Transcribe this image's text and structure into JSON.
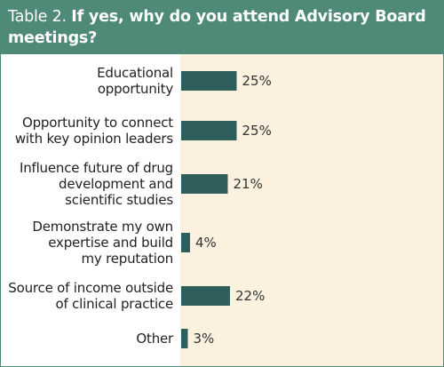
{
  "header": {
    "prefix": "Table 2.",
    "question": "If yes, why do you attend Advisory Board meetings?"
  },
  "colors": {
    "header_bg": "#4f8a79",
    "plot_bg": "#fcf1de",
    "bar": "#2e5f5c"
  },
  "chart_data": {
    "type": "bar",
    "orientation": "horizontal",
    "title": "If yes, why do you attend Advisory Board meetings?",
    "categories": [
      "Educational opportunity",
      "Opportunity to connect with key opinion leaders",
      "Influence future of drug development and scientific studies",
      "Demonstrate my own expertise and build my reputation",
      "Source of income outside of clinical practice",
      "Other"
    ],
    "category_lines": [
      [
        "Educational",
        "opportunity"
      ],
      [
        "Opportunity to connect",
        "with key opinion leaders"
      ],
      [
        "Influence future of drug",
        "development and",
        "scientific studies"
      ],
      [
        "Demonstrate my own",
        "expertise and build",
        "my reputation"
      ],
      [
        "Source of income outside",
        "of clinical practice"
      ],
      [
        "Other"
      ]
    ],
    "values": [
      25,
      25,
      21,
      4,
      22,
      3
    ],
    "value_labels": [
      "25%",
      "25%",
      "21%",
      "4%",
      "22%",
      "3%"
    ],
    "unit": "%",
    "grid": false,
    "legend": "none"
  }
}
